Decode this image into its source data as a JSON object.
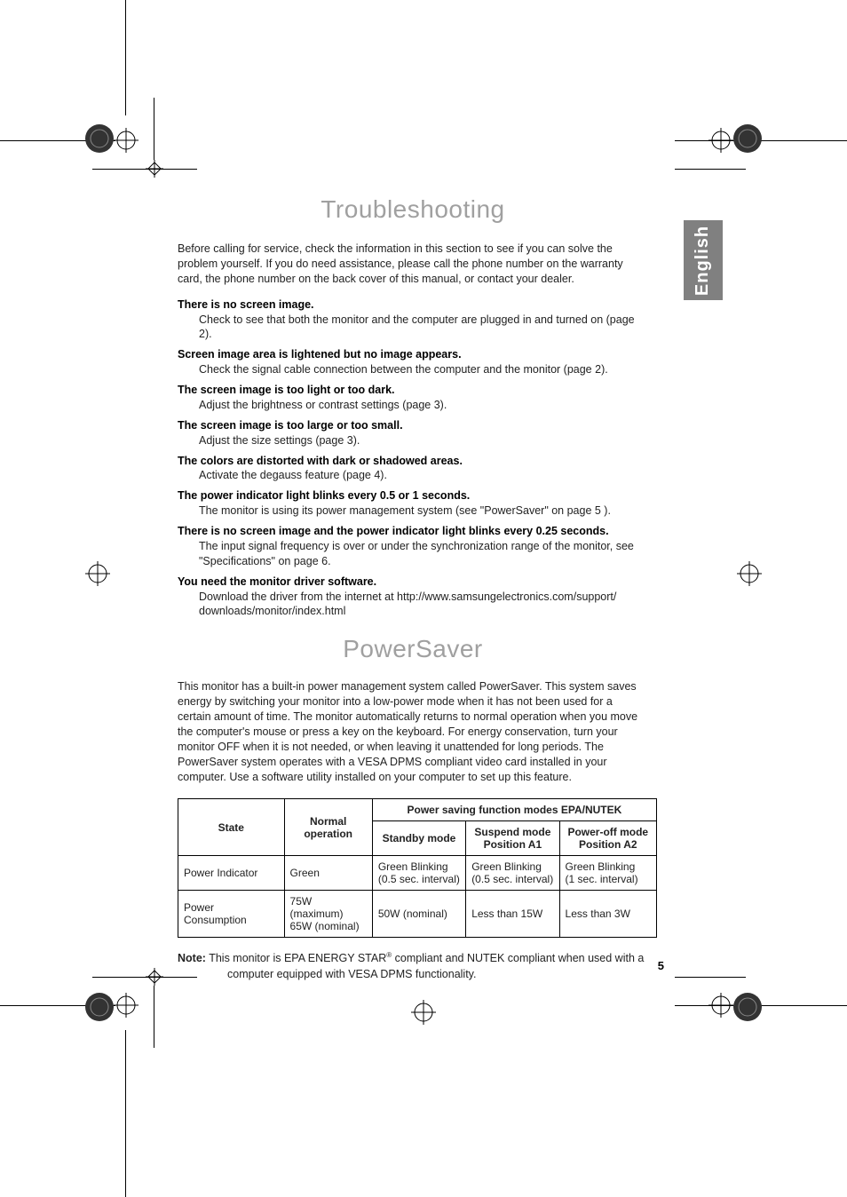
{
  "language_tab": "English",
  "page_number": "5",
  "troubleshooting": {
    "heading": "Troubleshooting",
    "intro": "Before calling for service, check the information in this section to see if you can solve the problem yourself. If you do need assistance, please call the phone number on the warranty card, the phone number on the back cover of this manual, or contact your dealer.",
    "items": [
      {
        "title": "There is no screen image.",
        "desc": "Check to see that both the monitor and the computer are plugged in and turned on (page 2)."
      },
      {
        "title": "Screen image area is lightened but no image appears.",
        "desc": "Check the signal cable connection between the computer and the monitor (page 2)."
      },
      {
        "title": "The screen image is too light or too dark.",
        "desc": "Adjust the brightness or contrast settings (page 3)."
      },
      {
        "title": "The screen image is too large or too small.",
        "desc": "Adjust the size settings (page 3)."
      },
      {
        "title": "The colors are distorted with dark or shadowed areas.",
        "desc": "Activate the degauss feature (page 4)."
      },
      {
        "title": "The power indicator light blinks every 0.5 or 1 seconds.",
        "desc": "The monitor is using its power management system (see \"PowerSaver\" on page 5 )."
      },
      {
        "title": "There is no screen image and the power indicator light blinks every 0.25 seconds.",
        "desc": "The input signal frequency is over or under the synchronization range of the monitor, see \"Specifications\" on page 6."
      },
      {
        "title": "You need the monitor driver software.",
        "desc": "Download the driver from the internet at http://www.samsungelectronics.com/support/ downloads/monitor/index.html"
      }
    ]
  },
  "powersaver": {
    "heading": "PowerSaver",
    "intro": "This monitor has a built-in power management system called PowerSaver. This system saves energy by switching your monitor into a low-power mode when it has not been used for a certain amount of time. The monitor automatically returns to normal operation when you move the computer's mouse or press a key on the keyboard. For energy conservation, turn your monitor OFF when it is not needed, or when leaving it unattended for long periods. The PowerSaver system operates with a VESA DPMS compliant video card installed in your computer. Use a software utility installed on your computer to set up this feature.",
    "table": {
      "header_top": "Power saving function modes EPA/NUTEK",
      "col_state": "State",
      "col_normal": "Normal operation",
      "col_standby": "Standby mode",
      "col_suspend_l1": "Suspend mode",
      "col_suspend_l2": "Position A1",
      "col_poweroff_l1": "Power-off mode",
      "col_poweroff_l2": "Position A2",
      "rows": [
        {
          "label": "Power Indicator",
          "normal": "Green",
          "standby_l1": "Green Blinking",
          "standby_l2": "(0.5 sec. interval)",
          "suspend_l1": "Green Blinking",
          "suspend_l2": "(0.5 sec. interval)",
          "poweroff_l1": "Green Blinking",
          "poweroff_l2": "(1 sec. interval)"
        },
        {
          "label": "Power Consumption",
          "normal_l1": "75W (maximum)",
          "normal_l2": "65W (nominal)",
          "standby_l1": "50W (nominal)",
          "standby_l2": "",
          "suspend_l1": "Less than 15W",
          "suspend_l2": "",
          "poweroff_l1": "Less than 3W",
          "poweroff_l2": ""
        }
      ]
    },
    "note_label": "Note:",
    "note_line1": " This monitor is EPA ENERGY STAR",
    "note_reg": "®",
    "note_line1b": " compliant and NUTEK compliant when used with a",
    "note_line2": "computer equipped with VESA DPMS functionality."
  },
  "colors": {
    "heading_gray": "#a0a0a0",
    "tab_bg": "#808080",
    "text": "#222222",
    "border": "#000000"
  }
}
